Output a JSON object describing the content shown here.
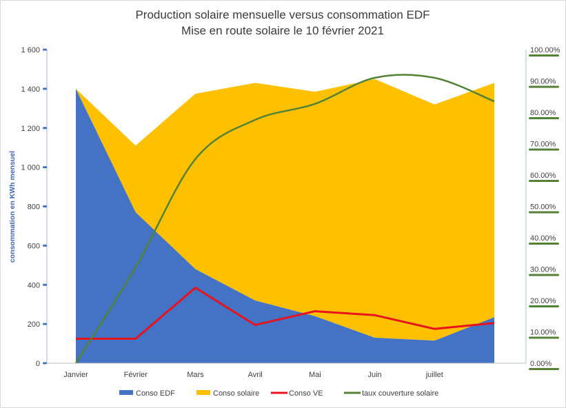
{
  "chart_data": {
    "type": "area",
    "title": "Production solaire mensuelle versus consommation EDF",
    "subtitle": "Mise en route solaire le 10 février 2021",
    "ylabel": "consommation en KWh mensuel",
    "xlabel": "",
    "categories": [
      "Janvier",
      "Février",
      "Mars",
      "Avril",
      "Mai",
      "Juin",
      "juillet",
      ""
    ],
    "ylim": [
      0,
      1600
    ],
    "y_ticks": [
      "0",
      "200",
      "400",
      "600",
      "800",
      "1 000",
      "1 200",
      "1 400",
      "1 600"
    ],
    "y_tick_values": [
      0,
      200,
      400,
      600,
      800,
      1000,
      1200,
      1400,
      1600
    ],
    "y2lim": [
      0,
      100
    ],
    "y2_ticks": [
      "0.00%",
      "10.00%",
      "20.00%",
      "30.00%",
      "40.00%",
      "50.00%",
      "60.00%",
      "70.00%",
      "80.00%",
      "90.00%",
      "100.00%"
    ],
    "y2_tick_values": [
      0,
      10,
      20,
      30,
      40,
      50,
      60,
      70,
      80,
      90,
      100
    ],
    "series": [
      {
        "name": "Conso EDF",
        "type": "area",
        "axis": "left",
        "color": "#4472c4",
        "values": [
          1400,
          770,
          480,
          320,
          240,
          130,
          115,
          235
        ]
      },
      {
        "name": "Conso solaire",
        "type": "area",
        "stacked_on": "Conso EDF",
        "axis": "left",
        "color": "#ffc000",
        "values": [
          0,
          340,
          895,
          1110,
          1145,
          1320,
          1205,
          1195
        ]
      },
      {
        "name": "Conso VE",
        "type": "line",
        "axis": "left",
        "color": "#e8121c",
        "values": [
          125,
          125,
          385,
          195,
          265,
          245,
          175,
          205
        ]
      },
      {
        "name": "taux couverture solaire",
        "type": "line",
        "axis": "right",
        "color": "#548235",
        "values": [
          0,
          30.6,
          65.1,
          77.6,
          82.7,
          91,
          91,
          83.5
        ]
      }
    ],
    "legend_position": "bottom",
    "grid": false
  }
}
